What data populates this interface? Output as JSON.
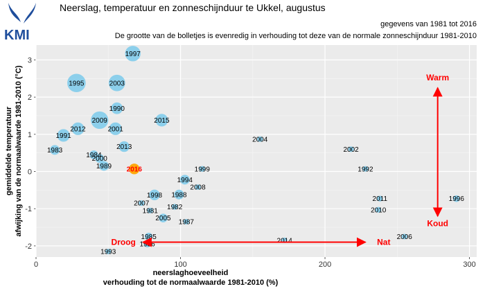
{
  "header": {
    "logo_text": "KMI",
    "title": "Neerslag, temperatuur en zonneschijnduur te Ukkel, augustus",
    "subtitle": "gegevens van 1981 tot 2016",
    "note": "De grootte van de bolletjes is evenredig in verhouding tot deze van de normale zonneschijnduur 1981-2010"
  },
  "chart_data": {
    "type": "scatter",
    "xlabel": [
      "neerslaghoeveelheid",
      "verhouding tot de normaalwaarde 1981-2010 (%)"
    ],
    "ylabel": [
      "gemiddelde temperatuur",
      "afwijking van de normaalwaarde 1981-2010 (°C)"
    ],
    "xlim": [
      0,
      305
    ],
    "ylim": [
      -2.3,
      3.4
    ],
    "x_ticks": [
      0,
      100,
      200,
      300
    ],
    "y_ticks": [
      -2,
      -1,
      0,
      1,
      2,
      3
    ],
    "grid": true,
    "highlight_year": "2016",
    "colors": {
      "bubble": "#87ceeb",
      "highlight": "#ffa500",
      "highlight_text": "#ff0000",
      "arrow": "#ff0000",
      "panel": "#ebebeb"
    },
    "points": [
      {
        "label": "1981",
        "x": 79,
        "y": -1.05,
        "size": 0.6
      },
      {
        "label": "1982",
        "x": 96,
        "y": -0.95,
        "size": 0.6
      },
      {
        "label": "1983",
        "x": 13,
        "y": 0.58,
        "size": 1.0
      },
      {
        "label": "1984",
        "x": 40,
        "y": 0.45,
        "size": 0.9
      },
      {
        "label": "1985",
        "x": 78,
        "y": -1.75,
        "size": 0.8
      },
      {
        "label": "1986",
        "x": 77,
        "y": -1.95,
        "size": 0.7
      },
      {
        "label": "1987",
        "x": 104,
        "y": -1.35,
        "size": 0.4
      },
      {
        "label": "1988",
        "x": 99,
        "y": -0.62,
        "size": 1.0
      },
      {
        "label": "1989",
        "x": 47,
        "y": 0.15,
        "size": 1.0
      },
      {
        "label": "1990",
        "x": 56,
        "y": 1.7,
        "size": 1.2
      },
      {
        "label": "1991",
        "x": 19,
        "y": 0.97,
        "size": 1.3
      },
      {
        "label": "1992",
        "x": 228,
        "y": 0.07,
        "size": 0.5
      },
      {
        "label": "1993",
        "x": 50,
        "y": -2.15,
        "size": 0.5
      },
      {
        "label": "1994",
        "x": 103,
        "y": -0.22,
        "size": 1.0
      },
      {
        "label": "1995",
        "x": 28,
        "y": 2.38,
        "size": 1.9
      },
      {
        "label": "1996",
        "x": 291,
        "y": -0.73,
        "size": 0.7
      },
      {
        "label": "1997",
        "x": 67,
        "y": 3.17,
        "size": 1.6
      },
      {
        "label": "1998",
        "x": 82,
        "y": -0.63,
        "size": 1.1
      },
      {
        "label": "1999",
        "x": 115,
        "y": 0.07,
        "size": 0.6
      },
      {
        "label": "2000",
        "x": 44,
        "y": 0.35,
        "size": 0.9
      },
      {
        "label": "2001",
        "x": 55,
        "y": 1.15,
        "size": 1.3
      },
      {
        "label": "2002",
        "x": 218,
        "y": 0.6,
        "size": 0.5
      },
      {
        "label": "2003",
        "x": 56,
        "y": 2.38,
        "size": 1.7
      },
      {
        "label": "2004",
        "x": 155,
        "y": 0.87,
        "size": 0.5
      },
      {
        "label": "2005",
        "x": 88,
        "y": -1.25,
        "size": 0.9
      },
      {
        "label": "2006",
        "x": 255,
        "y": -1.75,
        "size": 0.4
      },
      {
        "label": "2007",
        "x": 73,
        "y": -0.85,
        "size": 0.5
      },
      {
        "label": "2008",
        "x": 112,
        "y": -0.42,
        "size": 0.5
      },
      {
        "label": "2009",
        "x": 44,
        "y": 1.38,
        "size": 1.8
      },
      {
        "label": "2010",
        "x": 237,
        "y": -1.03,
        "size": 0.6
      },
      {
        "label": "2011",
        "x": 238,
        "y": -0.73,
        "size": 0.6
      },
      {
        "label": "2012",
        "x": 29,
        "y": 1.15,
        "size": 1.3
      },
      {
        "label": "2013",
        "x": 61,
        "y": 0.67,
        "size": 1.1
      },
      {
        "label": "2014",
        "x": 172,
        "y": -1.85,
        "size": 0.5
      },
      {
        "label": "2015",
        "x": 87,
        "y": 1.38,
        "size": 1.3
      },
      {
        "label": "2016",
        "x": 68,
        "y": 0.07,
        "size": 1.1
      }
    ],
    "annotations": {
      "warm": "Warm",
      "koud": "Koud",
      "droog": "Droog",
      "nat": "Nat"
    }
  }
}
